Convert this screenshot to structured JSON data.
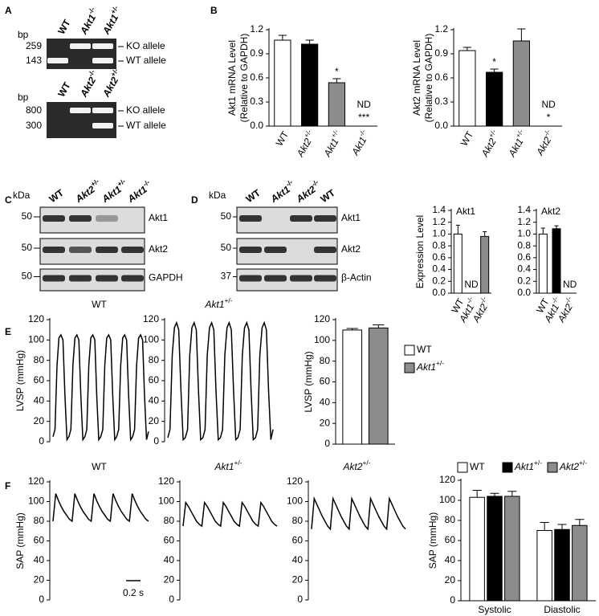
{
  "panel_labels": [
    "A",
    "B",
    "C",
    "D",
    "E",
    "F"
  ],
  "gels": [
    {
      "unit": "bp",
      "lanes": [
        "WT",
        "Akt1-/-",
        "Akt1+/-"
      ],
      "markers": [
        259,
        143
      ],
      "bands": [
        "KO allele",
        "WT allele"
      ]
    },
    {
      "unit": "bp",
      "lanes": [
        "WT",
        "Akt2-/-",
        "Akt2+/-"
      ],
      "markers": [
        800,
        300
      ],
      "bands": [
        "KO allele",
        "WT allele"
      ]
    }
  ],
  "blots": [
    {
      "unit": "kDa",
      "lanes": [
        "WT",
        "Akt2+/-",
        "Akt1+/-",
        "Akt1-/-"
      ],
      "markers": [
        50,
        50,
        50
      ],
      "bands": [
        "Akt1",
        "Akt2",
        "GAPDH"
      ]
    },
    {
      "unit": "kDa",
      "lanes": [
        "WT",
        "Akt1-/-",
        "Akt2-/-",
        "WT"
      ],
      "markers": [
        50,
        50,
        37
      ],
      "bands": [
        "Akt1",
        "Akt2",
        "β-Actin"
      ]
    }
  ],
  "chart_data": [
    {
      "type": "bar",
      "ylabel": [
        "Akt1 mRNA Level",
        "(Relative to GAPDH)"
      ],
      "categories": [
        "WT",
        "Akt2+/-",
        "Akt1+/-",
        "Akt1-/-"
      ],
      "values": [
        1.07,
        1.02,
        0.54,
        null
      ],
      "errors": [
        0.06,
        0.05,
        0.05,
        null
      ],
      "colors": [
        "#ffffff",
        "#000000",
        "#8c8c8c",
        "#8c8c8c"
      ],
      "notes": [
        null,
        null,
        [
          "*"
        ],
        [
          "ND",
          "***"
        ]
      ],
      "ylim": [
        0,
        1.2
      ],
      "yticks": [
        {
          "value": 0,
          "label": "0.0"
        },
        0.3,
        0.6,
        0.9,
        1.2
      ]
    },
    {
      "type": "bar",
      "ylabel": [
        "Akt2 mRNA Level",
        "(Relative to GAPDH)"
      ],
      "categories": [
        "WT",
        "Akt2+/-",
        "Akt1+/-",
        "Akt2-/-"
      ],
      "values": [
        0.94,
        0.67,
        1.06,
        null
      ],
      "errors": [
        0.04,
        0.04,
        0.15,
        null
      ],
      "colors": [
        "#ffffff",
        "#000000",
        "#8c8c8c",
        "#8c8c8c"
      ],
      "notes": [
        null,
        [
          "*"
        ],
        null,
        [
          "ND",
          "*"
        ]
      ],
      "ylim": [
        0,
        1.2
      ],
      "yticks": [
        {
          "value": 0,
          "label": "0.0"
        },
        0.3,
        0.6,
        0.9,
        1.2
      ]
    },
    {
      "type": "bar",
      "title": "Akt1",
      "ylabel": "Expression Level",
      "categories": [
        "WT",
        "Akt1-/-",
        "Akt2-/-"
      ],
      "values": [
        1.0,
        null,
        0.96
      ],
      "errors": [
        0.15,
        null,
        0.08
      ],
      "colors": [
        "#ffffff",
        "#000000",
        "#8c8c8c"
      ],
      "notes": [
        null,
        [
          "ND"
        ],
        null
      ],
      "ylim": [
        0,
        1.4
      ],
      "yticks": [
        {
          "value": 0,
          "label": "0.0"
        },
        0.2,
        0.4,
        0.6,
        0.8,
        {
          "value": 1,
          "label": "1.0"
        },
        1.2,
        1.4
      ]
    },
    {
      "type": "bar",
      "title": "Akt2",
      "categories": [
        "WT",
        "Akt1-/-",
        "Akt2-/-"
      ],
      "values": [
        1.0,
        1.09,
        null
      ],
      "errors": [
        0.1,
        0.05,
        null
      ],
      "colors": [
        "#ffffff",
        "#000000",
        "#8c8c8c"
      ],
      "notes": [
        null,
        null,
        [
          "ND"
        ]
      ],
      "ylim": [
        0,
        1.4
      ],
      "yticks": [
        {
          "value": 0,
          "label": "0.0"
        },
        0.2,
        0.4,
        0.6,
        0.8,
        {
          "value": 1,
          "label": "1.0"
        },
        1.2,
        1.4
      ]
    },
    {
      "type": "line",
      "title": "WT",
      "ylabel": "LVSP (mmHg)",
      "color": "#000000",
      "ylim": [
        0,
        120
      ],
      "yticks": [
        0,
        20,
        40,
        60,
        80,
        100,
        120
      ],
      "values": [
        5,
        12,
        75,
        102,
        105,
        100,
        45,
        2,
        5,
        12,
        75,
        102,
        105,
        100,
        45,
        2,
        5,
        12,
        75,
        102,
        105,
        100,
        45,
        2,
        5,
        12,
        75,
        102,
        105,
        100,
        45,
        2,
        5,
        12,
        75,
        102,
        105,
        100,
        45,
        2,
        5,
        12,
        75,
        102,
        105,
        100,
        45,
        2,
        10
      ]
    },
    {
      "type": "line",
      "title": "Akt1+/-",
      "color": "#000000",
      "ylim": [
        0,
        120
      ],
      "yticks": [
        0,
        20,
        40,
        60,
        80,
        100,
        120
      ],
      "values": [
        4,
        12,
        85,
        112,
        117,
        110,
        50,
        2,
        4,
        12,
        85,
        112,
        117,
        110,
        50,
        2,
        4,
        12,
        85,
        112,
        117,
        110,
        50,
        2,
        4,
        12,
        85,
        112,
        117,
        110,
        50,
        2,
        4,
        12,
        85,
        112,
        117,
        110,
        50,
        2,
        4,
        12,
        85,
        112,
        117,
        110,
        50,
        2,
        12
      ]
    },
    {
      "type": "bar",
      "ylabel": "LVSP (mmHg)",
      "legend": "right",
      "ylim": [
        0,
        120
      ],
      "yticks": [
        0,
        20,
        40,
        60,
        80,
        100,
        120
      ],
      "series": [
        {
          "name": "WT",
          "color": "#ffffff",
          "values": [
            110
          ],
          "errors": [
            1.5
          ]
        },
        {
          "name": "Akt1+/-",
          "color": "#8c8c8c",
          "values": [
            112
          ],
          "errors": [
            3
          ]
        }
      ]
    },
    {
      "type": "line",
      "title": "WT",
      "ylabel": "SAP (mmHg)",
      "color": "#000000",
      "scalebar": "0.2 s",
      "ylim": [
        0,
        120
      ],
      "yticks": [
        0,
        20,
        40,
        60,
        80,
        100,
        120
      ],
      "values": [
        80,
        108,
        101,
        95,
        90,
        86,
        82,
        80,
        108,
        101,
        95,
        90,
        86,
        82,
        80,
        108,
        101,
        95,
        90,
        86,
        82,
        80,
        108,
        101,
        95,
        90,
        86,
        82,
        80,
        108,
        101,
        95,
        90,
        86,
        82,
        80
      ]
    },
    {
      "type": "line",
      "title": "Akt1+/-",
      "color": "#000000",
      "ylim": [
        0,
        120
      ],
      "yticks": [
        0,
        20,
        40,
        60,
        80,
        100,
        120
      ],
      "values": [
        75,
        99,
        95,
        90,
        85,
        80,
        77,
        75,
        99,
        95,
        90,
        85,
        80,
        77,
        75,
        99,
        95,
        90,
        85,
        80,
        77,
        75,
        99,
        95,
        90,
        85,
        80,
        77,
        75,
        99,
        95,
        90,
        85,
        80,
        77,
        75
      ]
    },
    {
      "type": "line",
      "title": "Akt2+/-",
      "color": "#000000",
      "ylim": [
        0,
        120
      ],
      "yticks": [
        0,
        20,
        40,
        60,
        80,
        100,
        120
      ],
      "values": [
        72,
        103,
        97,
        91,
        85,
        80,
        75,
        72,
        103,
        97,
        91,
        85,
        80,
        75,
        72,
        103,
        97,
        91,
        85,
        80,
        75,
        72,
        103,
        97,
        91,
        85,
        80,
        75,
        72,
        103,
        97,
        91,
        85,
        80,
        75,
        72
      ]
    },
    {
      "type": "bar",
      "ylabel": "SAP (mmHg)",
      "legend": "top",
      "categories": [
        "Systolic",
        "Diastolic"
      ],
      "ylim": [
        0,
        120
      ],
      "yticks": [
        0,
        20,
        40,
        60,
        80,
        100,
        120
      ],
      "series": [
        {
          "name": "WT",
          "color": "#ffffff",
          "values": [
            103,
            70
          ],
          "errors": [
            7,
            8
          ]
        },
        {
          "name": "Akt1+/-",
          "color": "#000000",
          "values": [
            104,
            71
          ],
          "errors": [
            3,
            5
          ]
        },
        {
          "name": "Akt2+/-",
          "color": "#8c8c8c",
          "values": [
            104,
            75
          ],
          "errors": [
            5,
            6
          ]
        }
      ]
    }
  ]
}
